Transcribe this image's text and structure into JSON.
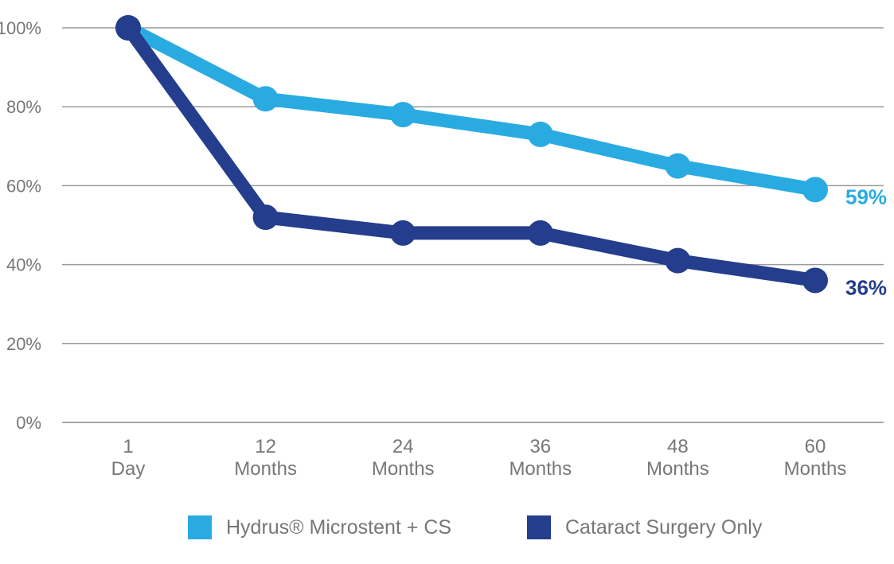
{
  "chart_data": {
    "type": "line",
    "categories": [
      {
        "line1": "1",
        "line2": "Day"
      },
      {
        "line1": "12",
        "line2": "Months"
      },
      {
        "line1": "24",
        "line2": "Months"
      },
      {
        "line1": "36",
        "line2": "Months"
      },
      {
        "line1": "48",
        "line2": "Months"
      },
      {
        "line1": "60",
        "line2": "Months"
      }
    ],
    "y_ticks": [
      "0%",
      "20%",
      "40%",
      "60%",
      "80%",
      "100%"
    ],
    "ylim": [
      0,
      100
    ],
    "grid": true,
    "legend_position": "bottom-center",
    "series": [
      {
        "name": "Hydrus® Microstent + CS",
        "values": [
          100,
          82,
          78,
          73,
          65,
          59
        ],
        "end_label": "59%",
        "color": "#29abe2"
      },
      {
        "name": "Cataract Surgery Only",
        "values": [
          100,
          52,
          48,
          48,
          41,
          36
        ],
        "end_label": "36%",
        "color": "#243d8c"
      }
    ]
  }
}
